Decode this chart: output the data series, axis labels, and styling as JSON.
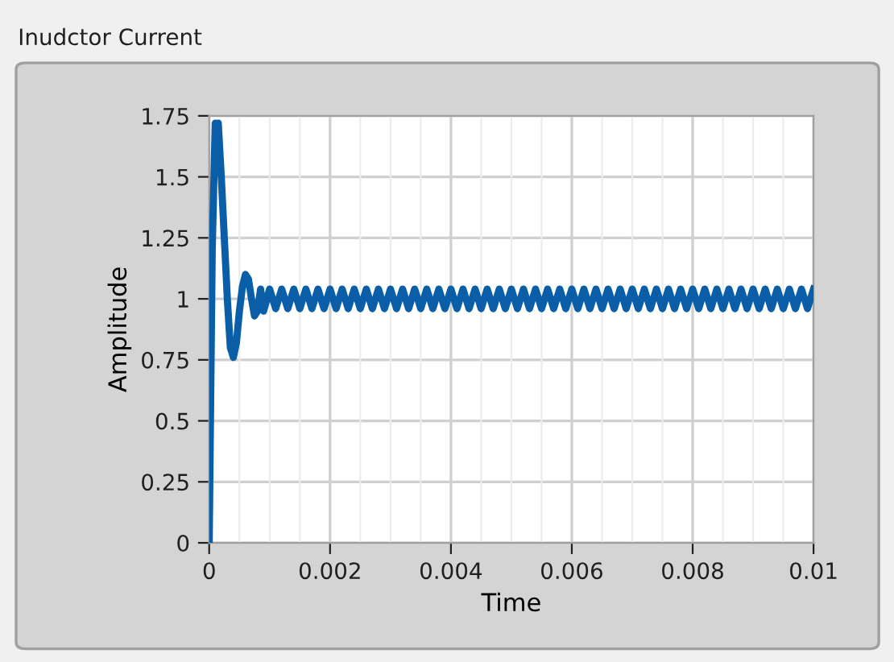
{
  "chart_data": {
    "type": "line",
    "title": "Inudctor Current",
    "xlabel": "Time",
    "ylabel": "Amplitude",
    "xlim": [
      0,
      0.01
    ],
    "ylim": [
      0,
      1.75
    ],
    "xticks": [
      0,
      0.002,
      0.004,
      0.006,
      0.008,
      0.01
    ],
    "yticks": [
      0,
      0.25,
      0.5,
      0.75,
      1,
      1.25,
      1.5,
      1.75
    ],
    "grid": true,
    "legend": false,
    "marker": "none",
    "line_style": "solid",
    "series": [
      {
        "color": "#0a5ea8",
        "x": [
          0,
          5e-05,
          0.0001,
          0.00012,
          0.00015,
          0.0002,
          0.00025,
          0.0003,
          0.00035,
          0.0004,
          0.00045,
          0.0005,
          0.00055,
          0.0006,
          0.00065,
          0.0007,
          0.00075,
          0.0008,
          0.00085,
          0.0009,
          0.001,
          0.0011,
          0.0012,
          0.0013,
          0.0014,
          0.0015,
          0.0016,
          0.0017,
          0.0018,
          0.0019,
          0.002,
          0.0021,
          0.0022,
          0.0023,
          0.0024,
          0.0025,
          0.0026,
          0.0027,
          0.0028,
          0.0029,
          0.003,
          0.0031,
          0.0032,
          0.0033,
          0.0034,
          0.0035,
          0.0036,
          0.0037,
          0.0038,
          0.0039,
          0.004,
          0.0041,
          0.0042,
          0.0043,
          0.0044,
          0.0045,
          0.0046,
          0.0047,
          0.0048,
          0.0049,
          0.005,
          0.0051,
          0.0052,
          0.0053,
          0.0054,
          0.0055,
          0.0056,
          0.0057,
          0.0058,
          0.0059,
          0.006,
          0.0061,
          0.0062,
          0.0063,
          0.0064,
          0.0065,
          0.0066,
          0.0067,
          0.0068,
          0.0069,
          0.007,
          0.0071,
          0.0072,
          0.0073,
          0.0074,
          0.0075,
          0.0076,
          0.0077,
          0.0078,
          0.0079,
          0.008,
          0.0081,
          0.0082,
          0.0083,
          0.0084,
          0.0085,
          0.0086,
          0.0087,
          0.0088,
          0.0089,
          0.009,
          0.0091,
          0.0092,
          0.0093,
          0.0094,
          0.0095,
          0.0096,
          0.0097,
          0.0098,
          0.0099,
          0.01
        ],
        "values": [
          0,
          1.2,
          1.72,
          1.6,
          1.72,
          1.5,
          1.25,
          1.0,
          0.8,
          0.76,
          0.82,
          0.95,
          1.05,
          1.1,
          1.08,
          1.0,
          0.93,
          0.95,
          1.04,
          0.95,
          1.04,
          0.96,
          1.04,
          0.96,
          1.04,
          0.96,
          1.04,
          0.96,
          1.04,
          0.96,
          1.04,
          0.96,
          1.04,
          0.96,
          1.04,
          0.96,
          1.04,
          0.96,
          1.04,
          0.96,
          1.04,
          0.96,
          1.04,
          0.96,
          1.04,
          0.96,
          1.04,
          0.96,
          1.04,
          0.96,
          1.04,
          0.96,
          1.04,
          0.96,
          1.04,
          0.96,
          1.04,
          0.96,
          1.04,
          0.96,
          1.04,
          0.96,
          1.04,
          0.96,
          1.04,
          0.96,
          1.04,
          0.96,
          1.04,
          0.96,
          1.04,
          0.96,
          1.04,
          0.96,
          1.04,
          0.96,
          1.04,
          0.96,
          1.04,
          0.96,
          1.04,
          0.96,
          1.04,
          0.96,
          1.04,
          0.96,
          1.04,
          0.96,
          1.04,
          0.96,
          1.04,
          0.96,
          1.04,
          0.96,
          1.04,
          0.96,
          1.04,
          0.96,
          1.04,
          0.96,
          1.04,
          0.96,
          1.04,
          0.96,
          1.04,
          0.96,
          1.04,
          0.96,
          1.04,
          0.96,
          1.04
        ]
      }
    ]
  }
}
